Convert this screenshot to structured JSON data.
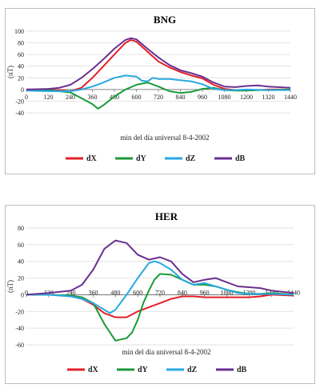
{
  "chart_data": [
    {
      "type": "line",
      "title": "BNG",
      "xlabel": "min del día universal 8-4-2002",
      "ylabel": "(nT)",
      "xlim": [
        0,
        1440
      ],
      "ylim": [
        -40,
        100
      ],
      "xticks": [
        0,
        120,
        240,
        360,
        480,
        600,
        720,
        840,
        960,
        1080,
        1200,
        1320,
        1440
      ],
      "yticks": [
        -40,
        -20,
        0,
        20,
        40,
        60,
        80,
        100
      ],
      "grid": true,
      "legend": "bottom",
      "series": [
        {
          "name": "dX",
          "color": "#e4202a",
          "x": [
            0,
            120,
            240,
            300,
            360,
            420,
            480,
            540,
            570,
            600,
            660,
            720,
            780,
            840,
            900,
            960,
            1020,
            1080,
            1140,
            1200,
            1260,
            1320,
            1440
          ],
          "y": [
            0,
            0,
            -3,
            3,
            20,
            40,
            60,
            80,
            85,
            82,
            65,
            48,
            38,
            30,
            24,
            19,
            8,
            1,
            -1,
            -1,
            -1,
            0,
            0
          ]
        },
        {
          "name": "dY",
          "color": "#1a9a3a",
          "x": [
            0,
            120,
            240,
            300,
            360,
            390,
            420,
            480,
            540,
            600,
            660,
            720,
            780,
            840,
            900,
            960,
            1020,
            1080,
            1140,
            1200,
            1260,
            1320,
            1440
          ],
          "y": [
            0,
            -1,
            -5,
            -15,
            -25,
            -33,
            -27,
            -12,
            0,
            8,
            12,
            5,
            -3,
            -6,
            -4,
            1,
            3,
            -1,
            -2,
            -2,
            -1,
            -1,
            0
          ]
        },
        {
          "name": "dZ",
          "color": "#27a9e1",
          "x": [
            0,
            120,
            240,
            300,
            360,
            420,
            480,
            540,
            600,
            630,
            660,
            690,
            720,
            780,
            840,
            900,
            960,
            1020,
            1080,
            1140,
            1200,
            1320,
            1440
          ],
          "y": [
            -2,
            -3,
            -3,
            0,
            5,
            12,
            20,
            24,
            22,
            15,
            14,
            20,
            18,
            18,
            16,
            14,
            9,
            1,
            -1,
            -1,
            0,
            -1,
            -1
          ]
        },
        {
          "name": "dB",
          "color": "#6a3090",
          "x": [
            0,
            120,
            180,
            240,
            300,
            360,
            420,
            480,
            540,
            570,
            600,
            660,
            720,
            780,
            840,
            900,
            960,
            1020,
            1080,
            1140,
            1200,
            1260,
            1320,
            1440
          ],
          "y": [
            0,
            1,
            3,
            8,
            20,
            35,
            52,
            70,
            85,
            88,
            86,
            70,
            55,
            42,
            33,
            28,
            22,
            12,
            5,
            4,
            6,
            7,
            5,
            3
          ]
        }
      ]
    },
    {
      "type": "line",
      "title": "HER",
      "xlabel": "min del día universal 8-4-2002",
      "ylabel": "(nT)",
      "xlim": [
        0,
        1440
      ],
      "ylim": [
        -60,
        80
      ],
      "xticks": [
        0,
        120,
        240,
        360,
        480,
        600,
        720,
        840,
        960,
        1080,
        1200,
        1320,
        1440
      ],
      "yticks": [
        -60,
        -40,
        -20,
        0,
        20,
        40,
        60,
        80
      ],
      "grid": true,
      "legend": "bottom",
      "series": [
        {
          "name": "dX",
          "color": "#e4202a",
          "x": [
            0,
            120,
            240,
            300,
            360,
            420,
            480,
            540,
            600,
            660,
            720,
            780,
            840,
            900,
            960,
            1020,
            1080,
            1140,
            1200,
            1260,
            1320,
            1440
          ],
          "y": [
            0,
            0,
            -2,
            -5,
            -12,
            -22,
            -27,
            -27,
            -20,
            -15,
            -10,
            -5,
            -2,
            -2,
            -3,
            -3,
            -3,
            -3,
            -3,
            -2,
            0,
            -1
          ]
        },
        {
          "name": "dY",
          "color": "#1a9a3a",
          "x": [
            0,
            120,
            240,
            300,
            360,
            420,
            480,
            540,
            570,
            600,
            630,
            660,
            690,
            720,
            780,
            840,
            900,
            960,
            1020,
            1080,
            1140,
            1200,
            1260,
            1320,
            1440
          ],
          "y": [
            0,
            0,
            -1,
            -3,
            -10,
            -35,
            -55,
            -52,
            -45,
            -30,
            -10,
            5,
            18,
            25,
            24,
            18,
            12,
            12,
            10,
            6,
            3,
            1,
            1,
            2,
            0
          ]
        },
        {
          "name": "dZ",
          "color": "#27a9e1",
          "x": [
            0,
            120,
            240,
            300,
            360,
            420,
            450,
            480,
            540,
            600,
            660,
            690,
            720,
            780,
            840,
            900,
            960,
            1020,
            1080,
            1140,
            1200,
            1260,
            1320,
            1440
          ],
          "y": [
            0,
            0,
            -2,
            -5,
            -10,
            -18,
            -22,
            -18,
            0,
            20,
            38,
            40,
            38,
            30,
            18,
            12,
            14,
            10,
            6,
            2,
            1,
            1,
            1,
            0
          ]
        },
        {
          "name": "dB",
          "color": "#6a3090",
          "x": [
            0,
            120,
            240,
            300,
            360,
            420,
            480,
            540,
            600,
            660,
            720,
            780,
            840,
            900,
            960,
            1020,
            1080,
            1140,
            1200,
            1260,
            1320,
            1440
          ],
          "y": [
            0,
            2,
            5,
            12,
            30,
            55,
            65,
            62,
            48,
            42,
            45,
            40,
            25,
            15,
            18,
            20,
            15,
            10,
            9,
            8,
            5,
            2
          ]
        }
      ]
    }
  ]
}
